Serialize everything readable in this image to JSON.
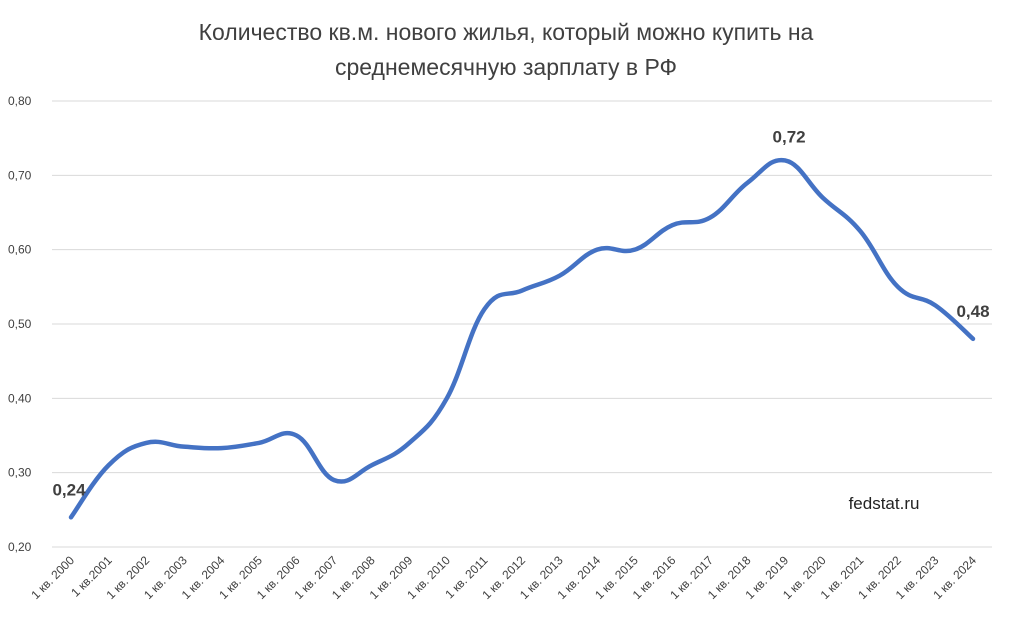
{
  "chart_data": {
    "type": "line",
    "title": [
      "Количество кв.м. нового жилья, который можно купить на",
      "среднемесячную зарплату в РФ"
    ],
    "xlabel": "",
    "ylabel": "",
    "ylim": [
      0.2,
      0.8
    ],
    "y_ticks": [
      "0,20",
      "0,30",
      "0,40",
      "0,50",
      "0,60",
      "0,70",
      "0,80"
    ],
    "y_tick_values": [
      0.2,
      0.3,
      0.4,
      0.5,
      0.6,
      0.7,
      0.8
    ],
    "grid": true,
    "legend": "none",
    "categories": [
      "1 кв. 2000",
      "1 кв.2001",
      "1 кв. 2002",
      "1 кв. 2003",
      "1 кв. 2004",
      "1 кв. 2005",
      "1 кв. 2006",
      "1 кв. 2007",
      "1 кв. 2008",
      "1 кв. 2009",
      "1 кв. 2010",
      "1 кв. 2011",
      "1 кв. 2012",
      "1 кв. 2013",
      "1 кв. 2014",
      "1 кв. 2015",
      "1 кв. 2016",
      "1 кв. 2017",
      "1 кв. 2018",
      "1 кв. 2019",
      "1 кв. 2020",
      "1 кв. 2021",
      "1 кв. 2022",
      "1 кв. 2023",
      "1 кв. 2024"
    ],
    "series": [
      {
        "color": "#4472c4",
        "values": [
          0.24,
          0.31,
          0.34,
          0.335,
          0.333,
          0.34,
          0.35,
          0.29,
          0.31,
          0.34,
          0.4,
          0.52,
          0.545,
          0.565,
          0.6,
          0.6,
          0.633,
          0.643,
          0.69,
          0.72,
          0.67,
          0.625,
          0.55,
          0.525,
          0.48
        ]
      }
    ],
    "data_labels": [
      {
        "index": 0,
        "text": "0,24"
      },
      {
        "index": 19,
        "text": "0,72"
      },
      {
        "index": 24,
        "text": "0,48"
      }
    ],
    "annotation": "fedstat.ru"
  }
}
